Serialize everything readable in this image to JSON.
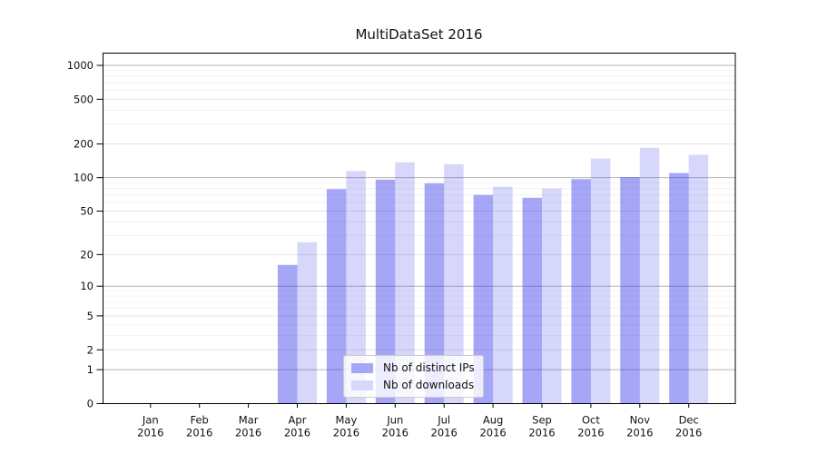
{
  "figure": {
    "background": "#ffffff"
  },
  "chart_data": {
    "type": "bar",
    "title": "MultiDataSet 2016",
    "categories": [
      "Jan 2016",
      "Feb 2016",
      "Mar 2016",
      "Apr 2016",
      "May 2016",
      "Jun 2016",
      "Jul 2016",
      "Aug 2016",
      "Sep 2016",
      "Oct 2016",
      "Nov 2016",
      "Dec 2016"
    ],
    "series": [
      {
        "name": "Nb of distinct IPs",
        "key": "distinct-ips",
        "color": "#3939eb",
        "fill_opacity": 0.45,
        "swatch_color": "#a6a6f6",
        "values": [
          0,
          0,
          0,
          16,
          79,
          96,
          89,
          70,
          66,
          97,
          101,
          110
        ]
      },
      {
        "name": "Nb of downloads",
        "key": "downloads",
        "color": "#3939eb",
        "fill_opacity": 0.2,
        "swatch_color": "#d7d7fb",
        "values": [
          0,
          0,
          0,
          26,
          115,
          137,
          132,
          83,
          80,
          148,
          185,
          160
        ]
      }
    ],
    "yscale": "symlog",
    "yticks": [
      0,
      1,
      2,
      5,
      10,
      20,
      50,
      100,
      200,
      500,
      1000
    ],
    "ylim": [
      0,
      1300
    ],
    "grid": true,
    "grid_colors": {
      "major": "#b4b4b4",
      "mid": "#e4e4e9",
      "minor": "#f2f2f5"
    },
    "axis_color": "#000000",
    "text_color": "#111111",
    "legend_position": "bottom-center"
  }
}
